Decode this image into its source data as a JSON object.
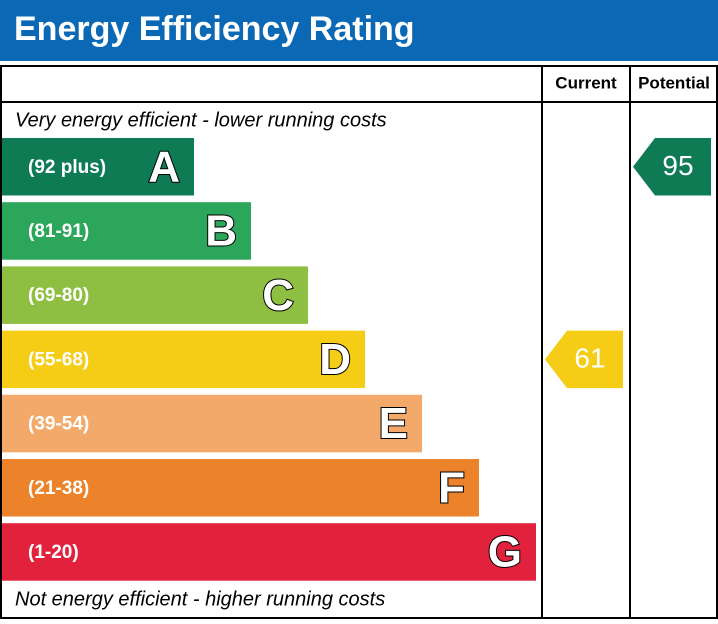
{
  "chart_data": {
    "type": "epc",
    "title": "Energy Efficiency Rating",
    "columns": [
      "Current",
      "Potential"
    ],
    "top_note": "Very energy efficient - lower running costs",
    "bottom_note": "Not energy efficient - higher running costs",
    "bands": [
      {
        "label": "(92 plus)",
        "letter": "A",
        "color": "#0f7b55"
      },
      {
        "label": "(81-91)",
        "letter": "B",
        "color": "#2ca65a"
      },
      {
        "label": "(69-80)",
        "letter": "C",
        "color": "#8fbf42"
      },
      {
        "label": "(55-68)",
        "letter": "D",
        "color": "#f5cc16"
      },
      {
        "label": "(39-54)",
        "letter": "E",
        "color": "#f2a96a"
      },
      {
        "label": "(21-38)",
        "letter": "F",
        "color": "#ec8229"
      },
      {
        "label": "(1-20)",
        "letter": "G",
        "color": "#e2223c"
      }
    ],
    "current": {
      "value": 61,
      "color": "#f5cc16"
    },
    "potential": {
      "value": 95,
      "color": "#0f7b55"
    }
  }
}
